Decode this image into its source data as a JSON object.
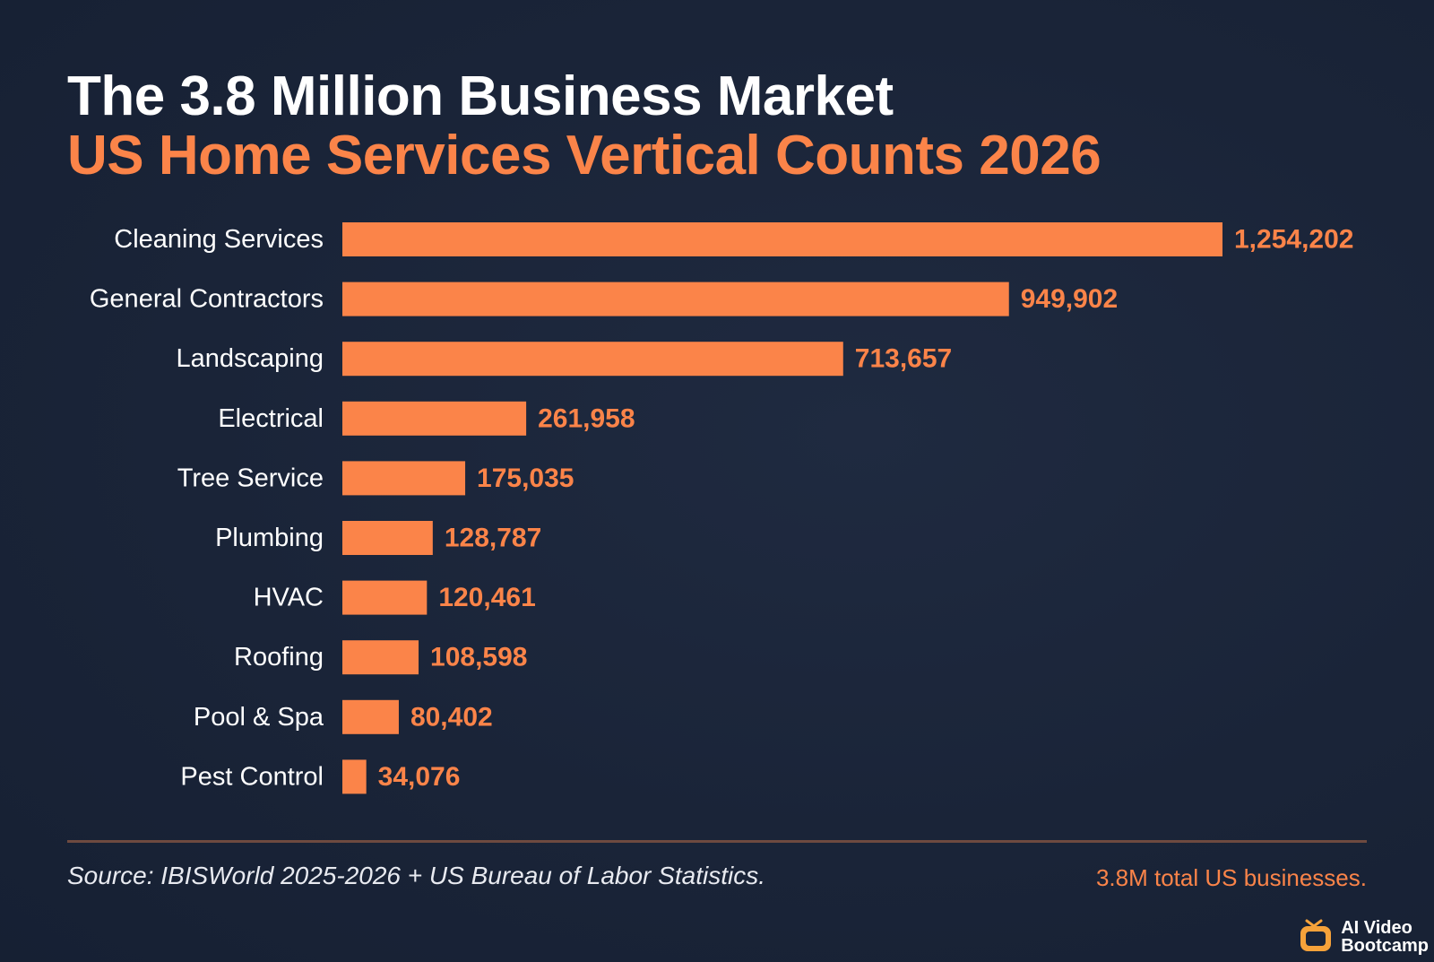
{
  "header": {
    "title": "The 3.8 Million Business Market",
    "subtitle": "US Home Services Vertical Counts 2026"
  },
  "footer": {
    "source": "Source: IBISWorld 2025-2026 + US Bureau of Labor Statistics.",
    "total_note": "3.8M total US businesses."
  },
  "brand": {
    "line1": "AI Video",
    "line2": "Bootcamp",
    "icon": "tv-logo-icon"
  },
  "colors": {
    "background": "#1a2438",
    "bar": "#fb8449",
    "accent": "#fb8449",
    "text": "#ffffff"
  },
  "chart_data": {
    "type": "bar",
    "orientation": "horizontal",
    "title": "The 3.8 Million Business Market",
    "subtitle": "US Home Services Vertical Counts 2026",
    "categories": [
      "Cleaning Services",
      "General Contractors",
      "Landscaping",
      "Electrical",
      "Tree Service",
      "Plumbing",
      "HVAC",
      "Roofing",
      "Pool & Spa",
      "Pest Control"
    ],
    "values": [
      1254202,
      949902,
      713657,
      261958,
      175035,
      128787,
      120461,
      108598,
      80402,
      34076
    ],
    "value_labels": [
      "1,254,202",
      "949,902",
      "713,657",
      "261,958",
      "175,035",
      "128,787",
      "120,461",
      "108,598",
      "80,402",
      "34,076"
    ],
    "xlim": [
      0,
      1254202
    ],
    "grid": false,
    "legend": "none"
  }
}
